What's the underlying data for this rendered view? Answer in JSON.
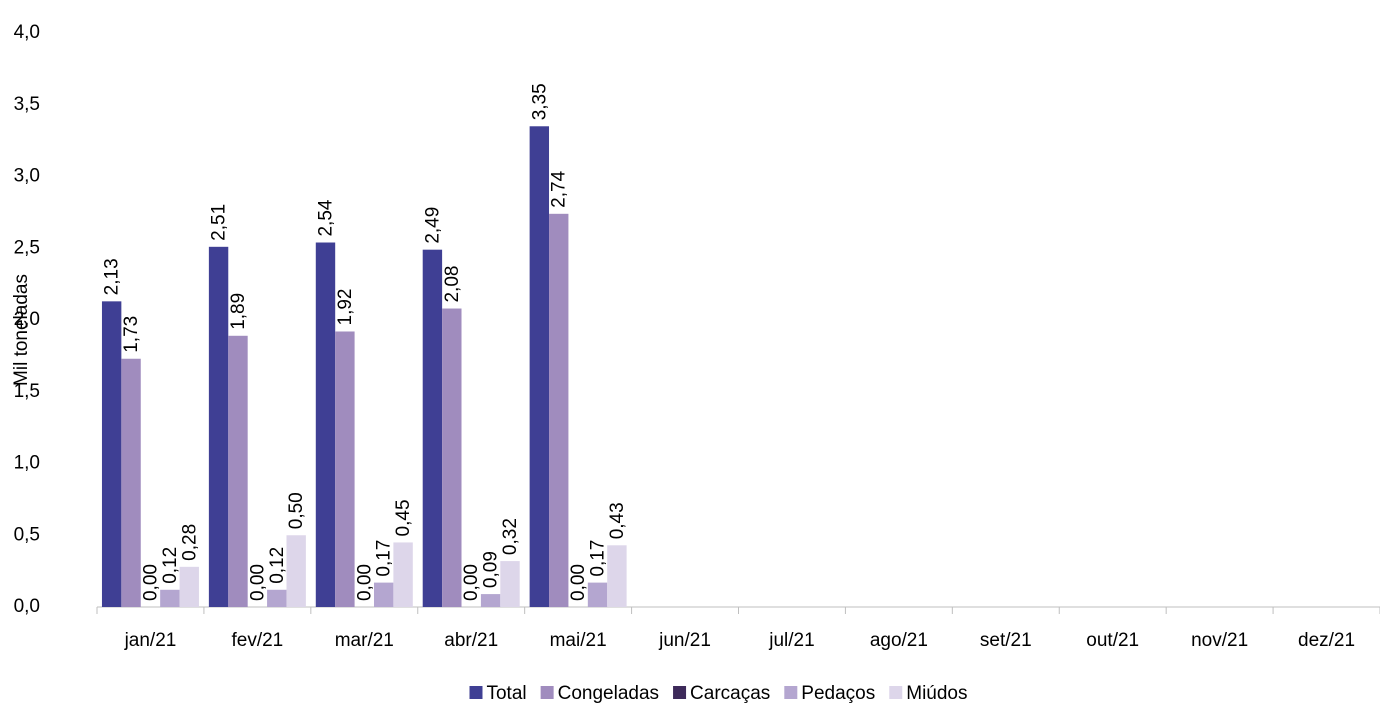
{
  "chart_data": {
    "type": "bar",
    "y_label": "Mil toneladas",
    "categories": [
      "jan/21",
      "fev/21",
      "mar/21",
      "abr/21",
      "mai/21",
      "jun/21",
      "jul/21",
      "ago/21",
      "set/21",
      "out/21",
      "nov/21",
      "dez/21"
    ],
    "series": [
      {
        "name": "Total",
        "color": "#3f3f94",
        "values": [
          2.13,
          2.51,
          2.54,
          2.49,
          3.35,
          null,
          null,
          null,
          null,
          null,
          null,
          null
        ],
        "value_labels": [
          "2,13",
          "2,51",
          "2,54",
          "2,49",
          "3,35",
          null,
          null,
          null,
          null,
          null,
          null,
          null
        ]
      },
      {
        "name": "Congeladas",
        "color": "#a08cbe",
        "values": [
          1.73,
          1.89,
          1.92,
          2.08,
          2.74,
          null,
          null,
          null,
          null,
          null,
          null,
          null
        ],
        "value_labels": [
          "1,73",
          "1,89",
          "1,92",
          "2,08",
          "2,74",
          null,
          null,
          null,
          null,
          null,
          null,
          null
        ]
      },
      {
        "name": "Carcaças",
        "color": "#3d2a5a",
        "values": [
          0,
          0,
          0,
          0,
          0,
          null,
          null,
          null,
          null,
          null,
          null,
          null
        ],
        "value_labels": [
          "0,00",
          "0,00",
          "0,00",
          "0,00",
          "0,00",
          null,
          null,
          null,
          null,
          null,
          null,
          null
        ]
      },
      {
        "name": "Pedaços",
        "color": "#b4a6d0",
        "values": [
          0.12,
          0.12,
          0.17,
          0.09,
          0.17,
          null,
          null,
          null,
          null,
          null,
          null,
          null
        ],
        "value_labels": [
          "0,12",
          "0,12",
          "0,17",
          "0,09",
          "0,17",
          null,
          null,
          null,
          null,
          null,
          null,
          null
        ]
      },
      {
        "name": "Miúdos",
        "color": "#ddd6ea",
        "values": [
          0.28,
          0.5,
          0.45,
          0.32,
          0.43,
          null,
          null,
          null,
          null,
          null,
          null,
          null
        ],
        "value_labels": [
          "0,28",
          "0,50",
          "0,45",
          "0,32",
          "0,43",
          null,
          null,
          null,
          null,
          null,
          null,
          null
        ]
      }
    ],
    "ylim": [
      0,
      4
    ],
    "yticks": [
      {
        "value": 0,
        "label": "0,0"
      },
      {
        "value": 0.5,
        "label": "0,5"
      },
      {
        "value": 1,
        "label": "1,0"
      },
      {
        "value": 1.5,
        "label": "1,5"
      },
      {
        "value": 2,
        "label": "2,0"
      },
      {
        "value": 2.5,
        "label": "2,5"
      },
      {
        "value": 3,
        "label": "3,0"
      },
      {
        "value": 3.5,
        "label": "3,5"
      },
      {
        "value": 4,
        "label": "4,0"
      }
    ],
    "grid": false,
    "legend": "bottom"
  }
}
